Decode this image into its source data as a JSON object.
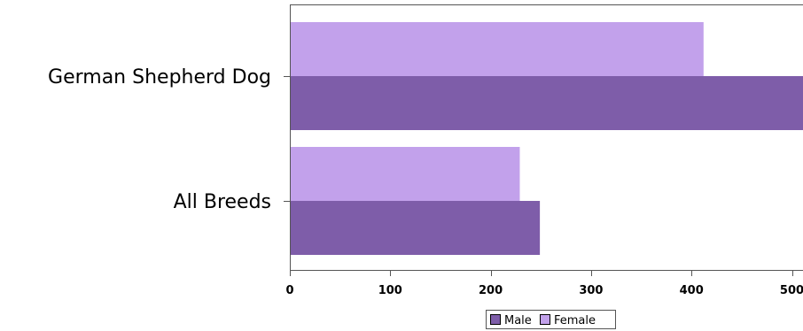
{
  "chart_data": {
    "type": "bar",
    "orientation": "horizontal",
    "categories": [
      "German Shepherd Dog",
      "All Breeds"
    ],
    "series": [
      {
        "name": "Male",
        "values": [
          520,
          249
        ],
        "color": "#7e5da9"
      },
      {
        "name": "Female",
        "values": [
          412,
          229
        ],
        "color": "#c2a1eb"
      }
    ],
    "x_ticks": [
      0,
      100,
      200,
      300,
      400,
      500
    ],
    "xlim": [
      0,
      510
    ],
    "legend_position": "bottom-center",
    "grid": false,
    "title": "",
    "xlabel": "",
    "ylabel": ""
  }
}
